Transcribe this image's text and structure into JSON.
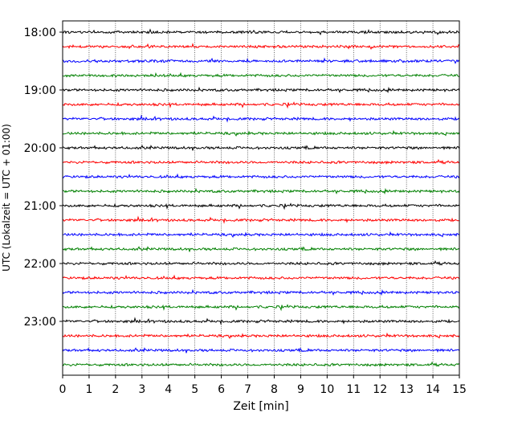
{
  "chart_data": {
    "type": "line",
    "title": "",
    "xlabel": "Zeit  [min]",
    "ylabel": "UTC (Lokalzeit = UTC + 01:00)",
    "xlim": [
      0,
      15
    ],
    "x_ticks": [
      0,
      1,
      2,
      3,
      4,
      5,
      6,
      7,
      8,
      9,
      10,
      11,
      12,
      13,
      14,
      15
    ],
    "x_tick_labels": [
      "0",
      "1",
      "2",
      "3",
      "4",
      "5",
      "6",
      "7",
      "8",
      "9",
      "10",
      "11",
      "12",
      "13",
      "14",
      "15"
    ],
    "y_tick_labels": [
      "18:00",
      "19:00",
      "20:00",
      "21:00",
      "22:00",
      "23:00"
    ],
    "y_range": [
      "18:00",
      "23:45"
    ],
    "trace_interval_min": 15,
    "grid": "vertical dotted lines at each minute",
    "legend": "none",
    "trace_color_cycle": [
      "#000000",
      "#ff0000",
      "#0000ff",
      "#008000"
    ],
    "series": [
      {
        "start_utc": "18:00",
        "color": "#000000"
      },
      {
        "start_utc": "18:15",
        "color": "#ff0000"
      },
      {
        "start_utc": "18:30",
        "color": "#0000ff"
      },
      {
        "start_utc": "18:45",
        "color": "#008000"
      },
      {
        "start_utc": "19:00",
        "color": "#000000"
      },
      {
        "start_utc": "19:15",
        "color": "#ff0000"
      },
      {
        "start_utc": "19:30",
        "color": "#0000ff"
      },
      {
        "start_utc": "19:45",
        "color": "#008000"
      },
      {
        "start_utc": "20:00",
        "color": "#000000"
      },
      {
        "start_utc": "20:15",
        "color": "#ff0000"
      },
      {
        "start_utc": "20:30",
        "color": "#0000ff"
      },
      {
        "start_utc": "20:45",
        "color": "#008000"
      },
      {
        "start_utc": "21:00",
        "color": "#000000"
      },
      {
        "start_utc": "21:15",
        "color": "#ff0000"
      },
      {
        "start_utc": "21:30",
        "color": "#0000ff"
      },
      {
        "start_utc": "21:45",
        "color": "#008000"
      },
      {
        "start_utc": "22:00",
        "color": "#000000"
      },
      {
        "start_utc": "22:15",
        "color": "#ff0000"
      },
      {
        "start_utc": "22:30",
        "color": "#0000ff"
      },
      {
        "start_utc": "22:45",
        "color": "#008000"
      },
      {
        "start_utc": "23:00",
        "color": "#000000"
      },
      {
        "start_utc": "23:15",
        "color": "#ff0000"
      },
      {
        "start_utc": "23:30",
        "color": "#0000ff"
      },
      {
        "start_utc": "23:45",
        "color": "#008000"
      }
    ]
  }
}
